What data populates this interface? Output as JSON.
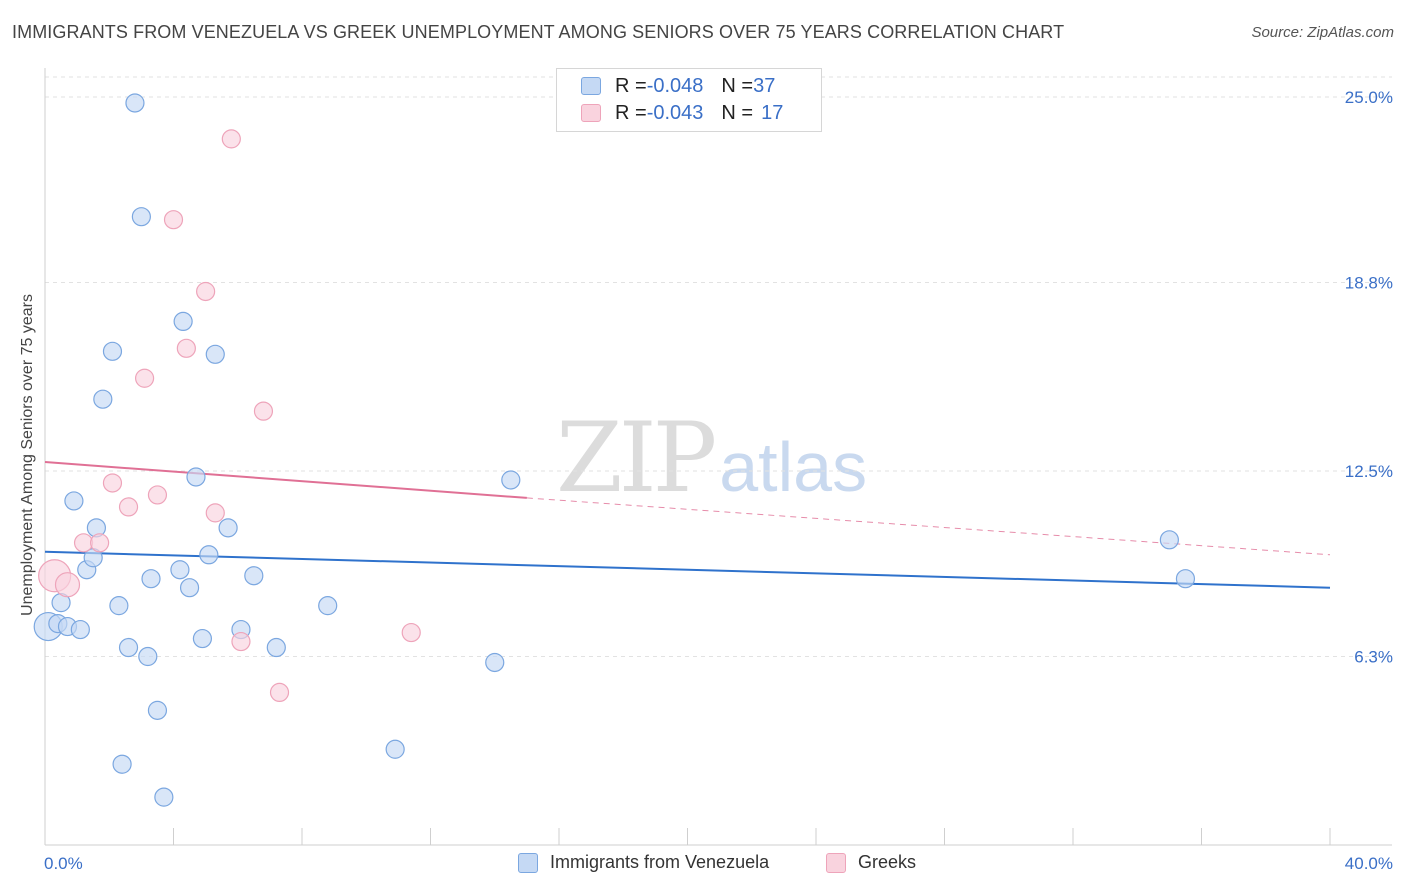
{
  "chart_data": {
    "type": "scatter",
    "title": "IMMIGRANTS FROM VENEZUELA VS GREEK UNEMPLOYMENT AMONG SENIORS OVER 75 YEARS CORRELATION CHART",
    "source": "Source: ZipAtlas.com",
    "xlabel": "",
    "ylabel": "Unemployment Among Seniors over 75 years",
    "xlim": [
      0,
      40
    ],
    "ylim": [
      0,
      25.8
    ],
    "x_tick_labels": [
      "0.0%",
      "40.0%"
    ],
    "y_ticks": [
      6.3,
      12.5,
      18.8,
      25.0
    ],
    "y_tick_labels": [
      "6.3%",
      "12.5%",
      "18.8%",
      "25.0%"
    ],
    "watermark": {
      "zip": "ZIP",
      "atlas": "atlas"
    },
    "legend": {
      "rows": [
        {
          "r_label": "R = ",
          "r_value": "-0.048",
          "n_label": "N = ",
          "n_value": "37"
        },
        {
          "r_label": "R = ",
          "r_value": "-0.043",
          "n_label": "N = ",
          "n_value": "17"
        }
      ]
    },
    "series": [
      {
        "name": "Immigrants from Venezuela",
        "color": "#7ba7e0",
        "fill": "#c5d9f4",
        "line_color": "#2f72cc",
        "trend": {
          "x": [
            0,
            40
          ],
          "y": [
            9.8,
            8.6
          ]
        },
        "points": [
          {
            "x": 0.1,
            "y": 7.3,
            "size": 14
          },
          {
            "x": 0.4,
            "y": 7.4,
            "size": 9
          },
          {
            "x": 0.5,
            "y": 8.1,
            "size": 9
          },
          {
            "x": 0.7,
            "y": 7.3,
            "size": 9
          },
          {
            "x": 0.9,
            "y": 11.5,
            "size": 9
          },
          {
            "x": 1.1,
            "y": 7.2,
            "size": 9
          },
          {
            "x": 1.3,
            "y": 9.2,
            "size": 9
          },
          {
            "x": 1.5,
            "y": 9.6,
            "size": 9
          },
          {
            "x": 1.6,
            "y": 10.6,
            "size": 9
          },
          {
            "x": 1.8,
            "y": 14.9,
            "size": 9
          },
          {
            "x": 2.1,
            "y": 16.5,
            "size": 9
          },
          {
            "x": 2.3,
            "y": 8.0,
            "size": 9
          },
          {
            "x": 2.4,
            "y": 2.7,
            "size": 9
          },
          {
            "x": 2.6,
            "y": 6.6,
            "size": 9
          },
          {
            "x": 2.8,
            "y": 24.8,
            "size": 9
          },
          {
            "x": 3.0,
            "y": 21.0,
            "size": 9
          },
          {
            "x": 3.2,
            "y": 6.3,
            "size": 9
          },
          {
            "x": 3.3,
            "y": 8.9,
            "size": 9
          },
          {
            "x": 3.5,
            "y": 4.5,
            "size": 9
          },
          {
            "x": 3.7,
            "y": 1.6,
            "size": 9
          },
          {
            "x": 4.2,
            "y": 9.2,
            "size": 9
          },
          {
            "x": 4.3,
            "y": 17.5,
            "size": 9
          },
          {
            "x": 4.5,
            "y": 8.6,
            "size": 9
          },
          {
            "x": 4.7,
            "y": 12.3,
            "size": 9
          },
          {
            "x": 4.9,
            "y": 6.9,
            "size": 9
          },
          {
            "x": 5.1,
            "y": 9.7,
            "size": 9
          },
          {
            "x": 5.3,
            "y": 16.4,
            "size": 9
          },
          {
            "x": 5.7,
            "y": 10.6,
            "size": 9
          },
          {
            "x": 6.1,
            "y": 7.2,
            "size": 9
          },
          {
            "x": 6.5,
            "y": 9.0,
            "size": 9
          },
          {
            "x": 7.2,
            "y": 6.6,
            "size": 9
          },
          {
            "x": 8.8,
            "y": 8.0,
            "size": 9
          },
          {
            "x": 10.9,
            "y": 3.2,
            "size": 9
          },
          {
            "x": 14.0,
            "y": 6.1,
            "size": 9
          },
          {
            "x": 14.5,
            "y": 12.2,
            "size": 9
          },
          {
            "x": 35.0,
            "y": 10.2,
            "size": 9
          },
          {
            "x": 35.5,
            "y": 8.9,
            "size": 9
          }
        ]
      },
      {
        "name": "Greeks",
        "color": "#eea4ba",
        "fill": "#f9d3de",
        "line_color": "#e07095",
        "trend": {
          "x": [
            0,
            15
          ],
          "y": [
            12.8,
            11.6
          ]
        },
        "trend_dashed": {
          "x": [
            15,
            40
          ],
          "y": [
            11.6,
            9.7
          ]
        },
        "points": [
          {
            "x": 0.3,
            "y": 9.0,
            "size": 16
          },
          {
            "x": 0.7,
            "y": 8.7,
            "size": 12
          },
          {
            "x": 1.2,
            "y": 10.1,
            "size": 9
          },
          {
            "x": 1.7,
            "y": 10.1,
            "size": 9
          },
          {
            "x": 2.1,
            "y": 12.1,
            "size": 9
          },
          {
            "x": 2.6,
            "y": 11.3,
            "size": 9
          },
          {
            "x": 3.1,
            "y": 15.6,
            "size": 9
          },
          {
            "x": 3.5,
            "y": 11.7,
            "size": 9
          },
          {
            "x": 4.0,
            "y": 20.9,
            "size": 9
          },
          {
            "x": 4.4,
            "y": 16.6,
            "size": 9
          },
          {
            "x": 5.0,
            "y": 18.5,
            "size": 9
          },
          {
            "x": 5.3,
            "y": 11.1,
            "size": 9
          },
          {
            "x": 5.8,
            "y": 23.6,
            "size": 9
          },
          {
            "x": 6.1,
            "y": 6.8,
            "size": 9
          },
          {
            "x": 6.8,
            "y": 14.5,
            "size": 9
          },
          {
            "x": 7.3,
            "y": 5.1,
            "size": 9
          },
          {
            "x": 11.4,
            "y": 7.1,
            "size": 9
          }
        ]
      }
    ]
  }
}
